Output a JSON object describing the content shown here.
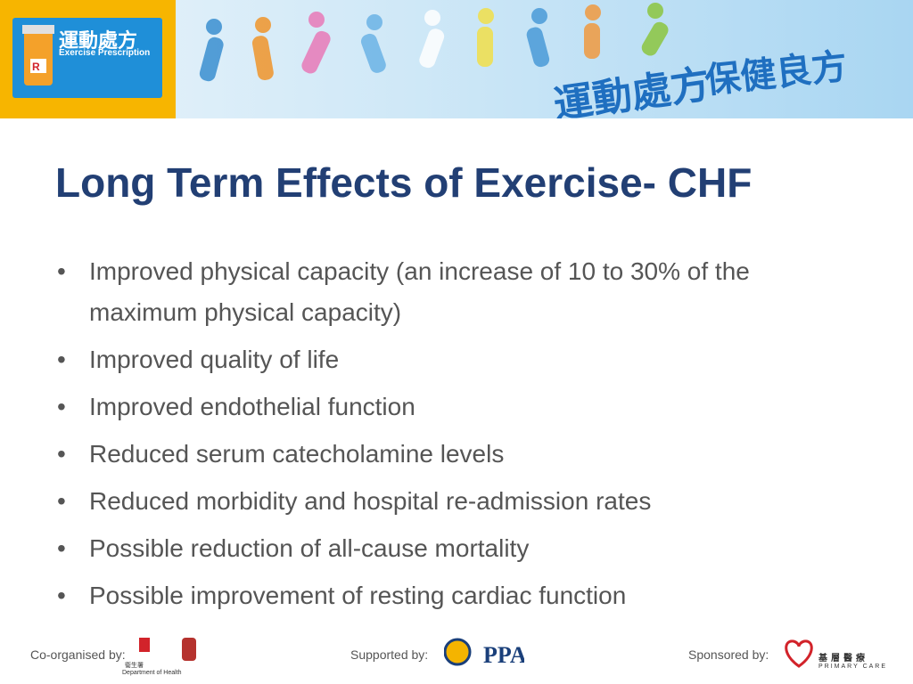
{
  "header": {
    "logo_title": "運動處方",
    "logo_subtitle": "Exercise Prescription",
    "banner_line1": "運動處方",
    "banner_line2": "保健良方"
  },
  "title": "Long Term Effects of Exercise- CHF",
  "bullets": [
    "Improved physical capacity (an increase of 10 to 30% of the maximum physical capacity)",
    "Improved quality of life",
    "Improved endothelial function",
    "Reduced serum catecholamine levels",
    "Reduced morbidity and hospital re-admission rates",
    "Possible reduction of all-cause mortality",
    "Possible improvement of resting cardiac function"
  ],
  "footer": {
    "co_organised": "Co-organised by:",
    "doh_cn": "衞生署",
    "doh_en": "Department of Health",
    "supported": "Supported by:",
    "sponsored": "Sponsored by:",
    "pc_cn": "基層醫療",
    "pc_en": "PRIMARY CARE"
  }
}
